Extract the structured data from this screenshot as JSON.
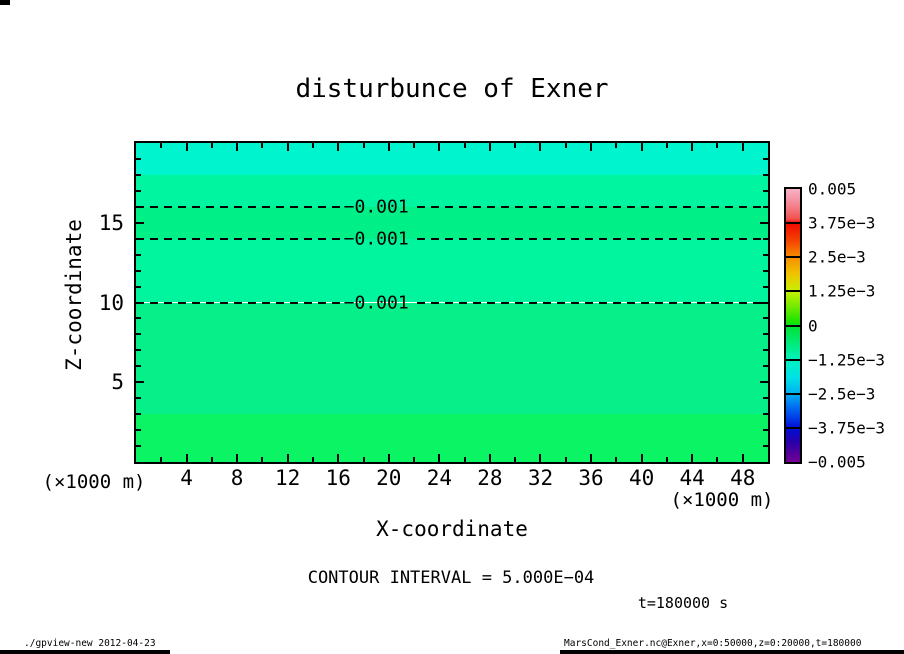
{
  "title": "disturbunce of Exner",
  "chart_data": {
    "type": "heatmap",
    "title": "disturbunce of Exner",
    "xlabel": "X-coordinate",
    "ylabel": "Z-coordinate",
    "x_unit_left": "(×1000 m)",
    "x_unit_right": "(×1000 m)",
    "xlim": [
      0,
      50
    ],
    "ylim": [
      0,
      20
    ],
    "x_major_ticks": [
      4,
      8,
      12,
      16,
      20,
      24,
      28,
      32,
      36,
      40,
      44,
      48
    ],
    "x_minor_step": 2,
    "y_major_ticks": [
      5,
      10,
      15
    ],
    "y_minor_step": 1,
    "grid": false,
    "contour_interval": 0.0005,
    "bands": [
      {
        "z_from": 18,
        "z_to": 20,
        "color": "#00F5CE"
      },
      {
        "z_from": 16,
        "z_to": 18,
        "color": "#00F5A0"
      },
      {
        "z_from": 14,
        "z_to": 16,
        "color": "#00EF86"
      },
      {
        "z_from": 10,
        "z_to": 14,
        "color": "#00F59E"
      },
      {
        "z_from": 3,
        "z_to": 10,
        "color": "#07EF89"
      },
      {
        "z_from": 0,
        "z_to": 3,
        "color": "#0BF464"
      }
    ],
    "contour_lines": [
      {
        "z": 16,
        "label": "−0.001"
      },
      {
        "z": 14,
        "label": "−0.001"
      },
      {
        "z": 10,
        "label": "−0.001"
      }
    ],
    "contour_label_x": 19,
    "colorbar": {
      "labels": [
        "0.005",
        "3.75e−3",
        "2.5e−3",
        "1.25e−3",
        "0",
        "−1.25e−3",
        "−2.5e−3",
        "−3.75e−3",
        "−0.005"
      ],
      "gradient_stops": [
        {
          "p": 0,
          "c": "#F7B2C8"
        },
        {
          "p": 6,
          "c": "#F4838E"
        },
        {
          "p": 11,
          "c": "#F2504E"
        },
        {
          "p": 12.5,
          "c": "#F30800"
        },
        {
          "p": 19,
          "c": "#F34400"
        },
        {
          "p": 25,
          "c": "#F68E00"
        },
        {
          "p": 31,
          "c": "#F0C400"
        },
        {
          "p": 37.5,
          "c": "#C6F000"
        },
        {
          "p": 43,
          "c": "#74EA00"
        },
        {
          "p": 49,
          "c": "#14E400"
        },
        {
          "p": 50,
          "c": "#00E330"
        },
        {
          "p": 56,
          "c": "#00EA74"
        },
        {
          "p": 62.5,
          "c": "#00F2BE"
        },
        {
          "p": 69,
          "c": "#00E2E6"
        },
        {
          "p": 75,
          "c": "#00AFF2"
        },
        {
          "p": 81,
          "c": "#0060F0"
        },
        {
          "p": 87.5,
          "c": "#000FD5"
        },
        {
          "p": 93,
          "c": "#2A00A6"
        },
        {
          "p": 100,
          "c": "#740093"
        }
      ]
    }
  },
  "annotations": {
    "contour_interval_text": "CONTOUR INTERVAL = 5.000E−04",
    "time_text": "t=180000 s"
  },
  "footer": {
    "left": "./gpview-new  2012-04-23",
    "right": "MarsCond_Exner.nc@Exner,x=0:50000,z=0:20000,t=180000"
  }
}
